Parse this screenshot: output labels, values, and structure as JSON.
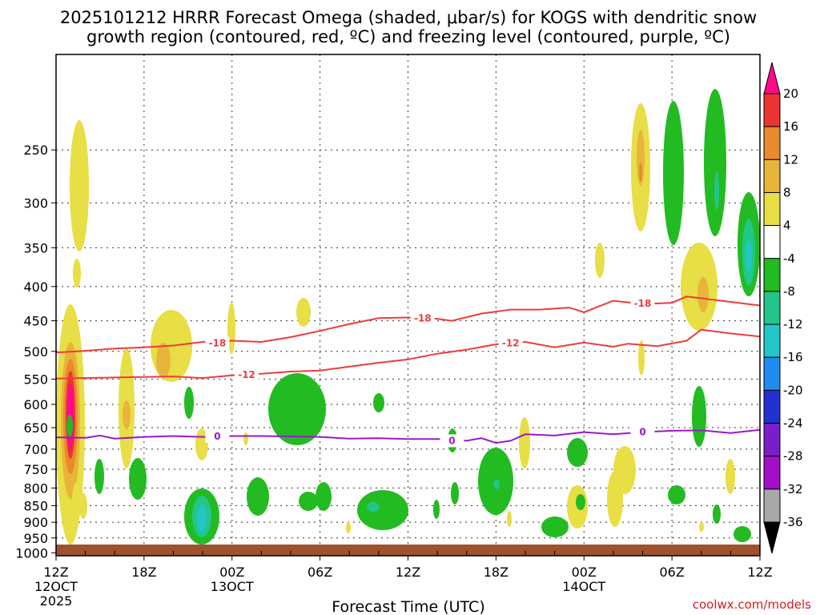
{
  "chart_data": {
    "type": "time-height cross section",
    "title_line1": "2025101212 HRRR Forecast Omega (shaded, μbar/s) for KOGS with dendritic snow",
    "title_line2": "growth region (contoured, red, ºC) and freezing level (contoured, purple, ºC)",
    "xlabel": "Forecast Time (UTC)",
    "ylabel": "",
    "credit": "coolwx.com/models",
    "x_range_hours": [
      0,
      48
    ],
    "y_range_mb": [
      1010,
      180
    ],
    "grid": true,
    "x_ticks": [
      {
        "hour": 0,
        "label": "12Z",
        "sub": "12OCT",
        "year": "2025"
      },
      {
        "hour": 6,
        "label": "18Z"
      },
      {
        "hour": 12,
        "label": "00Z",
        "sub": "13OCT"
      },
      {
        "hour": 18,
        "label": "06Z"
      },
      {
        "hour": 24,
        "label": "12Z"
      },
      {
        "hour": 30,
        "label": "18Z"
      },
      {
        "hour": 36,
        "label": "00Z",
        "sub": "14OCT"
      },
      {
        "hour": 42,
        "label": "06Z"
      },
      {
        "hour": 48,
        "label": "12Z"
      }
    ],
    "y_ticks": [
      250,
      300,
      350,
      400,
      450,
      500,
      550,
      600,
      650,
      700,
      750,
      800,
      850,
      900,
      950,
      1000
    ],
    "colorbar": {
      "labels": [
        "20",
        "16",
        "12",
        "8",
        "4",
        "-4",
        "-8",
        "-12",
        "-16",
        "-20",
        "-24",
        "-28",
        "-32",
        "-36"
      ],
      "colors": [
        "#ff0a8c",
        "#ee3333",
        "#e98a2c",
        "#e8b53a",
        "#e8de45",
        "#ffffff",
        "#22bb22",
        "#22c688",
        "#22c5c8",
        "#1e8cf0",
        "#2232d0",
        "#7a1ecb",
        "#a30fc6",
        "#a8a8a8",
        "#000000"
      ]
    },
    "contours": [
      {
        "name": "dgz -18C",
        "color": "#ee3b3b",
        "label": "-18",
        "points": [
          [
            0,
            502
          ],
          [
            2,
            499
          ],
          [
            4,
            495
          ],
          [
            6,
            493
          ],
          [
            8,
            490
          ],
          [
            10,
            484
          ],
          [
            12,
            482
          ],
          [
            14,
            484
          ],
          [
            16,
            476
          ],
          [
            18,
            466
          ],
          [
            20,
            455
          ],
          [
            22,
            446
          ],
          [
            24,
            445
          ],
          [
            26,
            447
          ],
          [
            27,
            450
          ],
          [
            29,
            439
          ],
          [
            31,
            433
          ],
          [
            33,
            433
          ],
          [
            35,
            430
          ],
          [
            36,
            437
          ],
          [
            38,
            420
          ],
          [
            40,
            425
          ],
          [
            42,
            423
          ],
          [
            43,
            414
          ],
          [
            45,
            419
          ],
          [
            48,
            427
          ]
        ],
        "labels": [
          {
            "hour": 11,
            "mb": 486
          },
          {
            "hour": 25,
            "mb": 446
          },
          {
            "hour": 40,
            "mb": 424
          }
        ]
      },
      {
        "name": "dgz -12C",
        "color": "#ee3b3b",
        "label": "-12",
        "points": [
          [
            0,
            549
          ],
          [
            4,
            547
          ],
          [
            8,
            545
          ],
          [
            10,
            548
          ],
          [
            12,
            543
          ],
          [
            14,
            540
          ],
          [
            16,
            536
          ],
          [
            18,
            534
          ],
          [
            20,
            527
          ],
          [
            22,
            520
          ],
          [
            24,
            514
          ],
          [
            26,
            504
          ],
          [
            28,
            497
          ],
          [
            30,
            488
          ],
          [
            32,
            484
          ],
          [
            34,
            493
          ],
          [
            36,
            485
          ],
          [
            38,
            492
          ],
          [
            39,
            487
          ],
          [
            41,
            491
          ],
          [
            43,
            482
          ],
          [
            44,
            464
          ],
          [
            46,
            470
          ],
          [
            48,
            475
          ]
        ],
        "labels": [
          {
            "hour": 13,
            "mb": 542
          },
          {
            "hour": 31,
            "mb": 486
          }
        ]
      },
      {
        "name": "freezing level 0C",
        "color": "#9b19c9",
        "label": "0",
        "points": [
          [
            0,
            672
          ],
          [
            2,
            673
          ],
          [
            3,
            668
          ],
          [
            4,
            675
          ],
          [
            6,
            671
          ],
          [
            8,
            669
          ],
          [
            10,
            671
          ],
          [
            12,
            669
          ],
          [
            14,
            669
          ],
          [
            16,
            670
          ],
          [
            18,
            671
          ],
          [
            20,
            675
          ],
          [
            22,
            674
          ],
          [
            24,
            676
          ],
          [
            26,
            676
          ],
          [
            28,
            680
          ],
          [
            29,
            674
          ],
          [
            30,
            685
          ],
          [
            31,
            680
          ],
          [
            32,
            665
          ],
          [
            34,
            668
          ],
          [
            36,
            660
          ],
          [
            38,
            665
          ],
          [
            40,
            660
          ],
          [
            42,
            657
          ],
          [
            44,
            656
          ],
          [
            46,
            662
          ],
          [
            48,
            655
          ]
        ],
        "labels": [
          {
            "hour": 11,
            "mb": 670
          },
          {
            "hour": 27,
            "mb": 680
          },
          {
            "hour": 40,
            "mb": 660
          }
        ]
      }
    ]
  }
}
